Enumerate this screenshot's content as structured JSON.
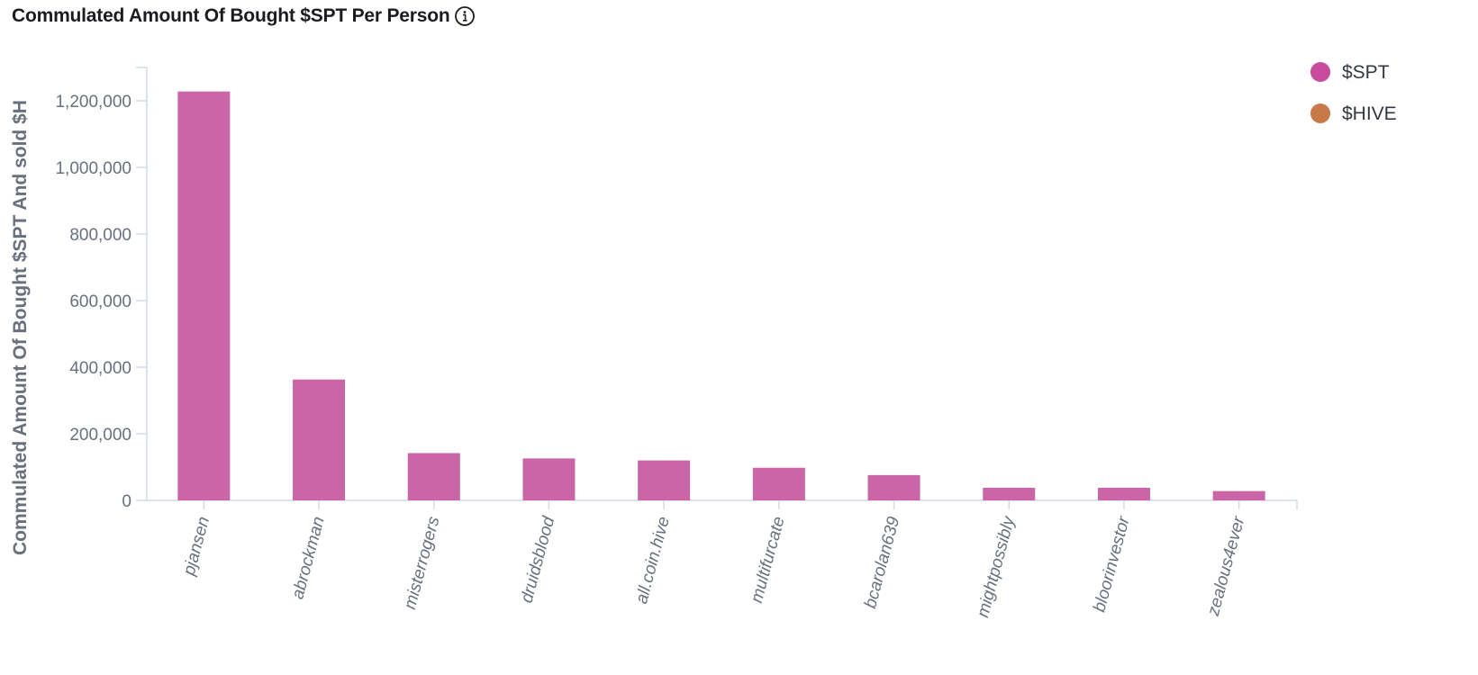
{
  "header": {
    "title": "Commulated Amount Of Bought $SPT Per Person",
    "info_icon": "info-circle-icon"
  },
  "chart_data": {
    "type": "bar",
    "title": "Commulated Amount Of Bought $SPT Per Person",
    "ylabel": "Commulated Amount Of Bought $SPT And sold $H",
    "xlabel": "",
    "categories": [
      "pjansen",
      "abrockman",
      "misterrogers",
      "druidsblood",
      "all.coin.hive",
      "multifurcate",
      "bcarolan639",
      "mightpossibly",
      "bloorinvestor",
      "zealous4ever"
    ],
    "series": [
      {
        "name": "$SPT",
        "color": "#ca66a8",
        "values": [
          1228000,
          363000,
          142000,
          126000,
          120000,
          98000,
          76000,
          38000,
          38000,
          28000
        ]
      }
    ],
    "legend": [
      {
        "name": "$SPT",
        "color": "#c94b9c"
      },
      {
        "name": "$HIVE",
        "color": "#c8794a"
      }
    ],
    "legend_position": "top-right",
    "ylim": [
      0,
      1300000
    ],
    "yticks": [
      0,
      200000,
      400000,
      600000,
      800000,
      1000000,
      1200000
    ],
    "ytick_labels": [
      "0",
      "200,000",
      "400,000",
      "600,000",
      "800,000",
      "1,000,000",
      "1,200,000"
    ],
    "grid": false
  }
}
